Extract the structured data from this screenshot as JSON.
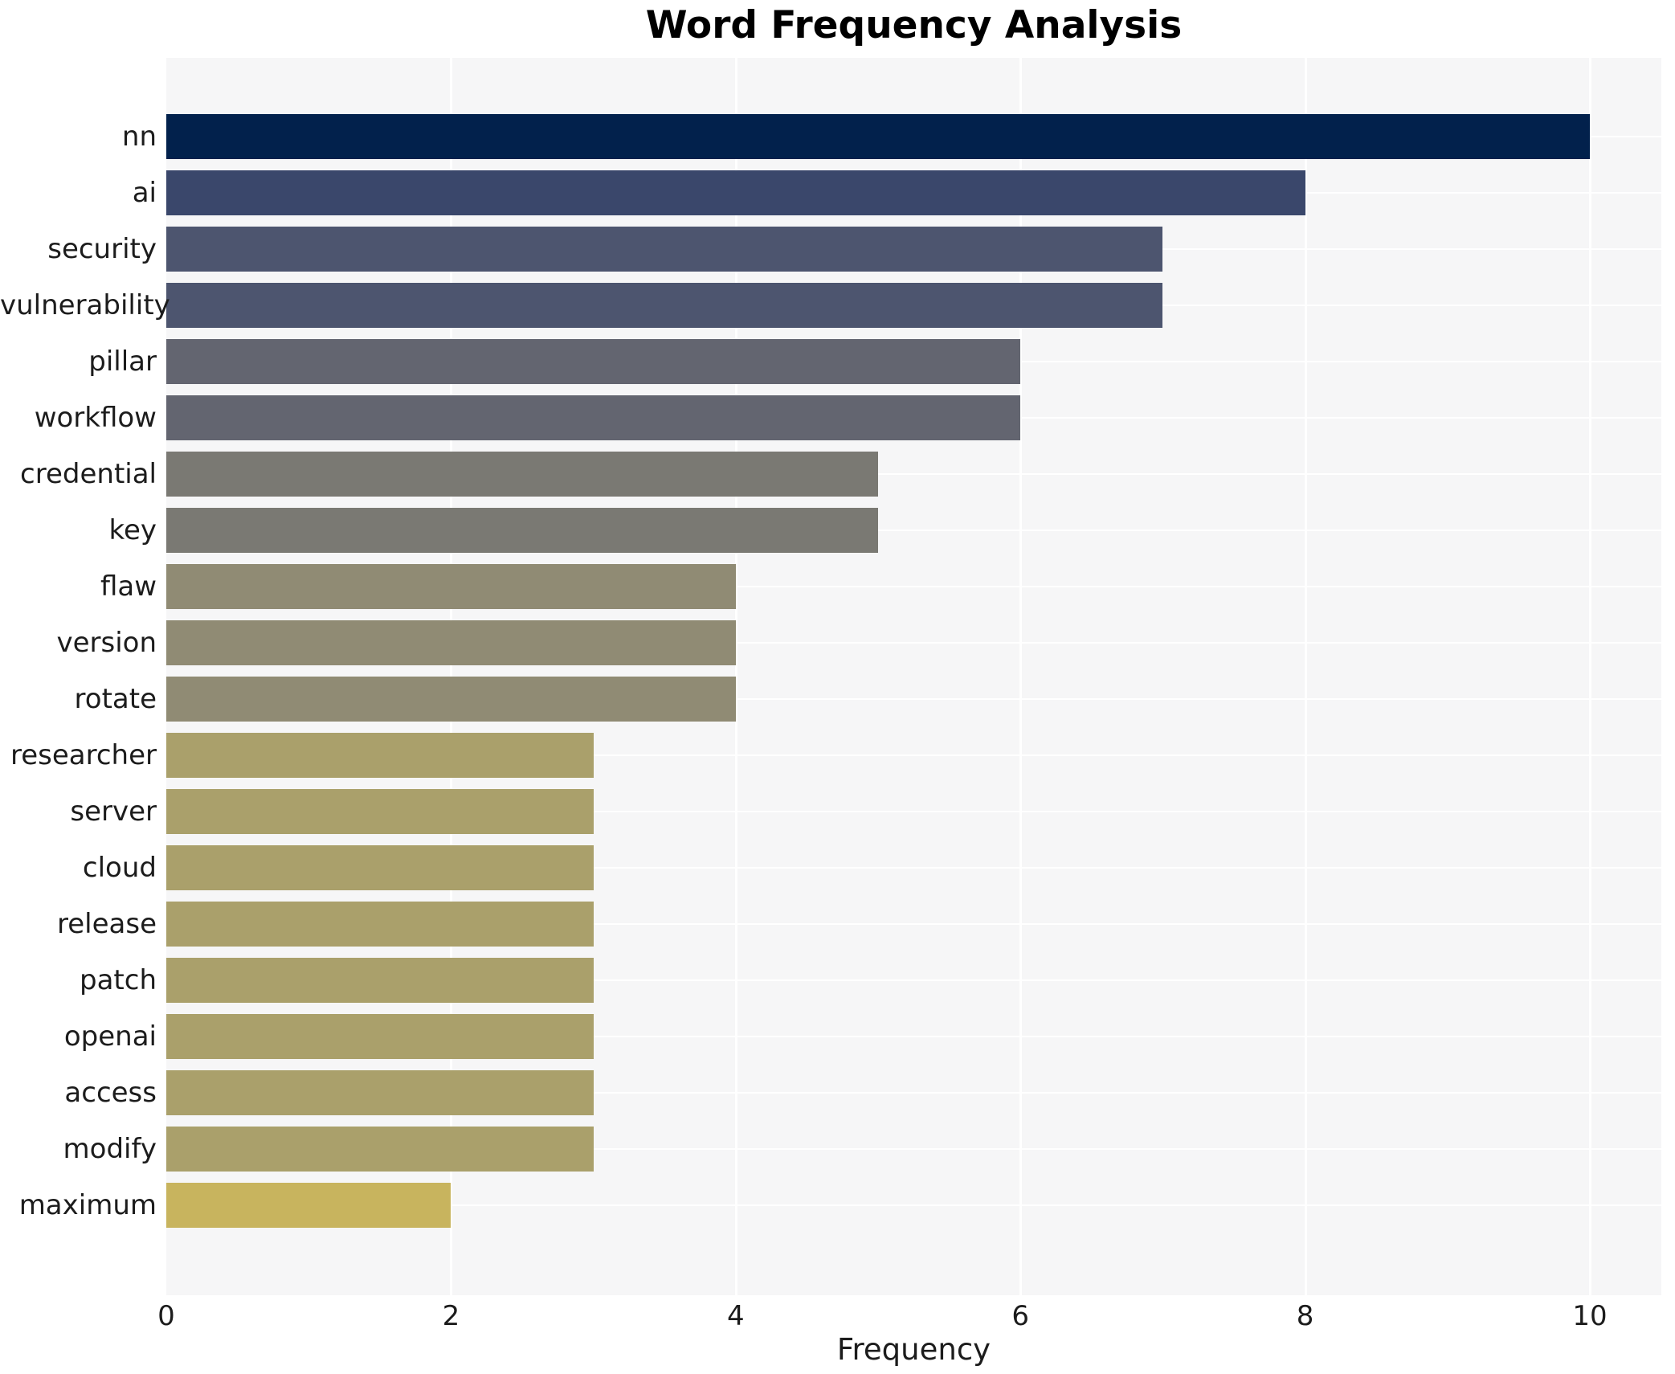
{
  "title": "Word Frequency Analysis",
  "chart_data": {
    "type": "bar",
    "orientation": "horizontal",
    "title": "Word Frequency Analysis",
    "xlabel": "Frequency",
    "ylabel": "",
    "categories": [
      "nn",
      "ai",
      "security",
      "vulnerability",
      "pillar",
      "workflow",
      "credential",
      "key",
      "flaw",
      "version",
      "rotate",
      "researcher",
      "server",
      "cloud",
      "release",
      "patch",
      "openai",
      "access",
      "modify",
      "maximum"
    ],
    "values": [
      10,
      8,
      7,
      7,
      6,
      6,
      5,
      5,
      4,
      4,
      4,
      3,
      3,
      3,
      3,
      3,
      3,
      3,
      3,
      2
    ],
    "bar_colors": [
      "#02214c",
      "#3a476b",
      "#4d556f",
      "#4d556f",
      "#636570",
      "#636570",
      "#7a7973",
      "#7a7973",
      "#908b74",
      "#908b74",
      "#908b74",
      "#aaa06b",
      "#aaa06b",
      "#aaa06b",
      "#aaa06b",
      "#aaa06b",
      "#aaa06b",
      "#aaa06b",
      "#aaa06b",
      "#c8b45e"
    ],
    "xlim": [
      0,
      10.5
    ],
    "xticks": [
      0,
      2,
      4,
      6,
      8,
      10
    ],
    "grid": true,
    "legend": false,
    "colors": {
      "plot_background": "#f6f6f7",
      "grid_line": "#ffffff",
      "figure_background": "#ffffff",
      "text": "#1c1c1c",
      "title_text": "#000000"
    }
  }
}
